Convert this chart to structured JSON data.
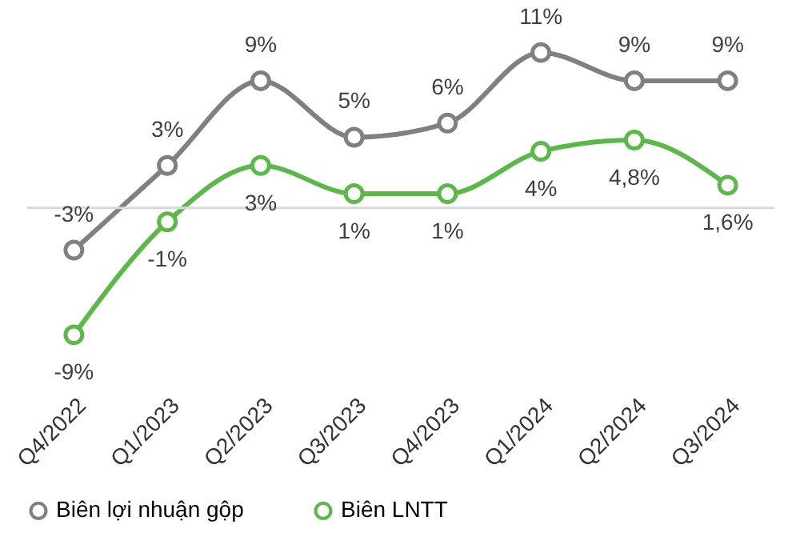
{
  "chart_data": {
    "type": "line",
    "categories": [
      "Q4/2022",
      "Q1/2023",
      "Q2/2023",
      "Q3/2023",
      "Q4/2023",
      "Q1/2024",
      "Q2/2024",
      "Q3/2024"
    ],
    "series": [
      {
        "name": "Biên lợi nhuận gộp",
        "color": "#808080",
        "values": [
          -3,
          3,
          9,
          5,
          6,
          11,
          9,
          9
        ],
        "value_labels": [
          "-3%",
          "3%",
          "9%",
          "5%",
          "6%",
          "11%",
          "9%",
          "9%"
        ]
      },
      {
        "name": "Biên LNTT",
        "color": "#5cb848",
        "values": [
          -9,
          -1,
          3,
          1,
          1,
          4,
          4.8,
          1.6
        ],
        "value_labels": [
          "-9%",
          "-1%",
          "3%",
          "1%",
          "1%",
          "4%",
          "4,8%",
          "1,6%"
        ]
      }
    ],
    "ref_lines": [
      {
        "axis": "y",
        "value": 0,
        "color": "#d9d9d9"
      }
    ],
    "marker": "circle",
    "legend": "bottom",
    "grid": false
  }
}
